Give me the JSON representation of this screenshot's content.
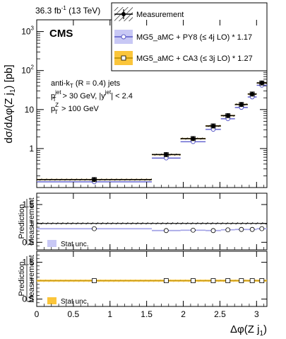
{
  "chart_data": {
    "type": "scatter",
    "lumi_label": "36.3 fb",
    "lumi_sup": "-1",
    "lumi_energy": "(13 TeV)",
    "experiment": "CMS",
    "ylabel": "dσ/dΔφ(Z j",
    "ylabel_sub": "1",
    "ylabel_tail": ") [pb]",
    "xlabel": "Δφ(Z j",
    "xlabel_sub": "1",
    "xlabel_tail": ")",
    "yscale": "log",
    "ylim": [
      0.1,
      2000
    ],
    "xlim": [
      0,
      3.1416
    ],
    "x_ticks": [
      "0",
      "0.5",
      "1",
      "1.5",
      "2",
      "2.5",
      "3"
    ],
    "y_ticks": [
      "1",
      "10",
      "10",
      "10"
    ],
    "y_ticks_exp": [
      "",
      "",
      "2",
      "3"
    ],
    "annotations": {
      "alg_a": "anti-k",
      "alg_sub": "T",
      "alg_b": " (R = 0.4) jets",
      "cut1_a": "p",
      "cut1_sup": "jet",
      "cut1_sub": "T",
      "cut1_b": " > 30 GeV, |y",
      "cut1_sup2": "jet",
      "cut1_c": "| < 2.4",
      "cut2_a": "p",
      "cut2_sup": "Z",
      "cut2_sub": "T",
      "cut2_b": " > 100 GeV"
    },
    "legend": {
      "placement": "top-right",
      "entries": [
        "Measurement",
        "MG5_aMC + PY8 (≤ 4j LO) * 1.17",
        "MG5_aMC + CA3 (≤ 3j LO) * 1.27"
      ]
    },
    "bins": [
      [
        0,
        1.571
      ],
      [
        1.571,
        1.963
      ],
      [
        1.963,
        2.304
      ],
      [
        2.304,
        2.513
      ],
      [
        2.513,
        2.705
      ],
      [
        2.705,
        2.88
      ],
      [
        2.88,
        3.002
      ],
      [
        3.002,
        3.1416
      ]
    ],
    "x": [
      0.785,
      1.767,
      2.134,
      2.409,
      2.609,
      2.793,
      2.941,
      3.072
    ],
    "series": [
      {
        "name": "Measurement",
        "values": [
          0.16,
          0.7,
          1.8,
          3.8,
          7.0,
          13.5,
          25.0,
          48.0
        ]
      },
      {
        "name": "MG5_aMC + PY8 (≤ 4j LO) * 1.17",
        "values": [
          0.14,
          0.57,
          1.5,
          3.1,
          5.8,
          11.3,
          21.0,
          42.0
        ]
      },
      {
        "name": "MG5_aMC + CA3 (≤ 3j LO) * 1.27",
        "values": [
          0.16,
          0.7,
          1.8,
          3.8,
          7.0,
          13.5,
          25.0,
          48.0
        ]
      }
    ],
    "ratio_panels": [
      {
        "ylabel_top": "Prediction",
        "ylabel_bottom": "Measurement",
        "ylim": [
          0.3,
          1.8
        ],
        "y_ticks": [
          "0.5",
          "1",
          "1.5"
        ],
        "values": [
          0.86,
          0.81,
          0.82,
          0.81,
          0.83,
          0.84,
          0.84,
          0.86
        ],
        "stat_unc": [
          0.02,
          0.02,
          0.02,
          0.02,
          0.02,
          0.02,
          0.02,
          0.02
        ],
        "stat_label": "Stat unc."
      },
      {
        "ylabel_top": "Prediction",
        "ylabel_bottom": "Measurement",
        "ylim": [
          0.3,
          1.8
        ],
        "y_ticks": [
          "0.5",
          "1",
          "1.5"
        ],
        "values": [
          1.0,
          1.0,
          1.0,
          1.0,
          1.0,
          1.0,
          1.0,
          1.0
        ],
        "stat_unc": [
          0.03,
          0.03,
          0.03,
          0.03,
          0.03,
          0.03,
          0.03,
          0.03
        ],
        "stat_label": "Stat unc."
      }
    ],
    "colors": {
      "measurement": "#000000",
      "py8": "#5a5ac8",
      "py8_band": "#c8c8f5",
      "ca3": "#b08a00",
      "ca3_band": "#fbc53a"
    }
  }
}
